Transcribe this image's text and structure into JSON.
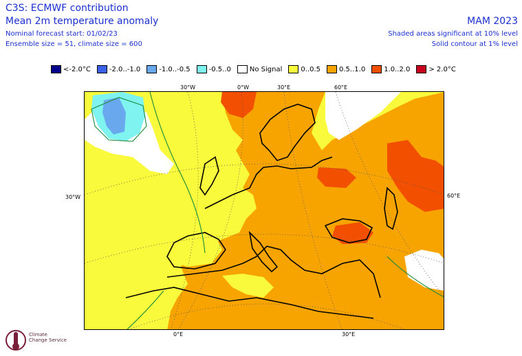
{
  "header": {
    "title_line1": "C3S: ECMWF contribution",
    "title_line2": "Mean 2m temperature anomaly",
    "forecast_start": "Nominal forecast start: 01/02/23",
    "ensemble": "Ensemble size = 51, climate size = 600",
    "period": "MAM 2023",
    "significance_shaded": "Shaded areas significant at 10% level",
    "significance_contour": "Solid contour at 1% level"
  },
  "legend": [
    {
      "label": "<-2.0°C",
      "color": "#00008b"
    },
    {
      "label": "-2.0..-1.0",
      "color": "#3a5fe8"
    },
    {
      "label": "-1.0..-0.5",
      "color": "#6aa8ee"
    },
    {
      "label": "-0.5..0",
      "color": "#7ef3f0"
    },
    {
      "label": "No Signal",
      "color": "#ffffff"
    },
    {
      "label": "0..0.5",
      "color": "#fafa3c"
    },
    {
      "label": "0.5..1.0",
      "color": "#f7a400"
    },
    {
      "label": "1.0..2.0",
      "color": "#f25000"
    },
    {
      "label": "> 2.0°C",
      "color": "#c8001e"
    }
  ],
  "graticule": {
    "top": [
      "30°W",
      "0°W",
      "30°E",
      "60°E"
    ],
    "left": "30°W",
    "right": "60°E",
    "bottom": [
      "0°E",
      "30°E"
    ]
  },
  "logo": {
    "line1": "Climate",
    "line2": "Change Service"
  }
}
